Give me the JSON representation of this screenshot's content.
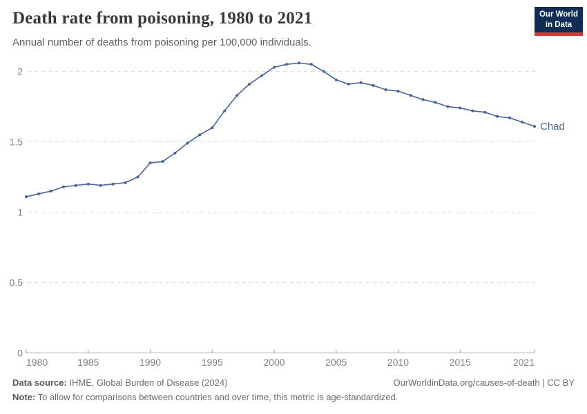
{
  "header": {
    "title": "Death rate from poisoning, 1980 to 2021",
    "subtitle": "Annual number of deaths from poisoning per 100,000 individuals.",
    "logo": {
      "line1": "Our World",
      "line2": "in Data"
    }
  },
  "chart_data": {
    "type": "line",
    "title": "Death rate from poisoning, 1980 to 2021",
    "x_start": 1980,
    "x_end": 2021,
    "x": [
      1980,
      1981,
      1982,
      1983,
      1984,
      1985,
      1986,
      1987,
      1988,
      1989,
      1990,
      1991,
      1992,
      1993,
      1994,
      1995,
      1996,
      1997,
      1998,
      1999,
      2000,
      2001,
      2002,
      2003,
      2004,
      2005,
      2006,
      2007,
      2008,
      2009,
      2010,
      2011,
      2012,
      2013,
      2014,
      2015,
      2016,
      2017,
      2018,
      2019,
      2020,
      2021
    ],
    "series": [
      {
        "name": "Chad",
        "values": [
          1.11,
          1.13,
          1.15,
          1.18,
          1.19,
          1.2,
          1.19,
          1.2,
          1.21,
          1.25,
          1.35,
          1.36,
          1.42,
          1.49,
          1.55,
          1.6,
          1.72,
          1.83,
          1.91,
          1.97,
          2.03,
          2.05,
          2.06,
          2.05,
          2.0,
          1.94,
          1.91,
          1.92,
          1.9,
          1.87,
          1.86,
          1.83,
          1.8,
          1.78,
          1.75,
          1.74,
          1.72,
          1.71,
          1.68,
          1.67,
          1.64,
          1.61
        ]
      }
    ],
    "end_label": "Chad",
    "xlabel": "",
    "ylabel": "",
    "ylim": [
      0,
      2.1
    ],
    "yticks": [
      0,
      0.5,
      1,
      1.5,
      2
    ],
    "ytick_labels": [
      "0",
      "0.5",
      "1",
      "1.5",
      "2"
    ],
    "xticks": [
      1980,
      1985,
      1990,
      1995,
      2000,
      2005,
      2010,
      2015,
      2021
    ],
    "grid": "horizontal-dashed",
    "legend_position": "end-of-line"
  },
  "footer": {
    "source_label": "Data source:",
    "source_text": " IHME, Global Burden of Disease (2024)",
    "link_text": "OurWorldinData.org/causes-of-death | CC BY",
    "note_label": "Note:",
    "note_text": " To allow for comparisons between countries and over time, this metric is age-standardized."
  },
  "colors": {
    "series_line": "#4C6A9C",
    "series_marker": "#44629B",
    "grid_line": "#dcdcdc",
    "axis_line": "#a3a3a3",
    "tick_label": "#808080",
    "logo_bg": "#0f2d55",
    "logo_accent": "#d13b33"
  }
}
